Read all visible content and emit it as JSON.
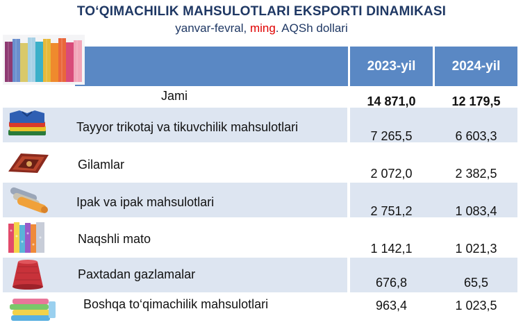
{
  "title": "TO‘QIMACHILIK MAHSULOTLARI EKSPORTI DINAMIKASI",
  "subtitle": {
    "pre": "yanvar-fevral, ",
    "highlight": "ming",
    "post": ". AQSh dollari"
  },
  "columns": [
    "2023-yil",
    "2024-yil"
  ],
  "total": {
    "label": "Jami",
    "v2023": "14 871,0",
    "v2024": "12 179,5"
  },
  "rows": [
    {
      "label": "Tayyor trikotaj va tikuvchilik mahsulotlari",
      "v2023": "7 265,5",
      "v2024": "6 603,3",
      "icon": "folded-clothes-icon"
    },
    {
      "label": "Gilamlar",
      "v2023": "2 072,0",
      "v2024": "2 382,5",
      "icon": "carpet-icon"
    },
    {
      "label": "Ipak va ipak mahsulotlari",
      "v2023": "2 751,2",
      "v2024": "1 083,4",
      "icon": "silk-rolls-icon"
    },
    {
      "label": "Naqshli mato",
      "v2023": "1 142,1",
      "v2024": "1 021,3",
      "icon": "patterned-fabric-icon"
    },
    {
      "label": "Paxtadan gazlamalar",
      "v2023": "676,8",
      "v2024": "65,5",
      "icon": "yarn-spool-icon"
    },
    {
      "label": "Boshqa to‘qimachilik mahsulotlari",
      "v2023": "963,4",
      "v2024": "1 023,5",
      "icon": "towels-stack-icon"
    }
  ]
}
